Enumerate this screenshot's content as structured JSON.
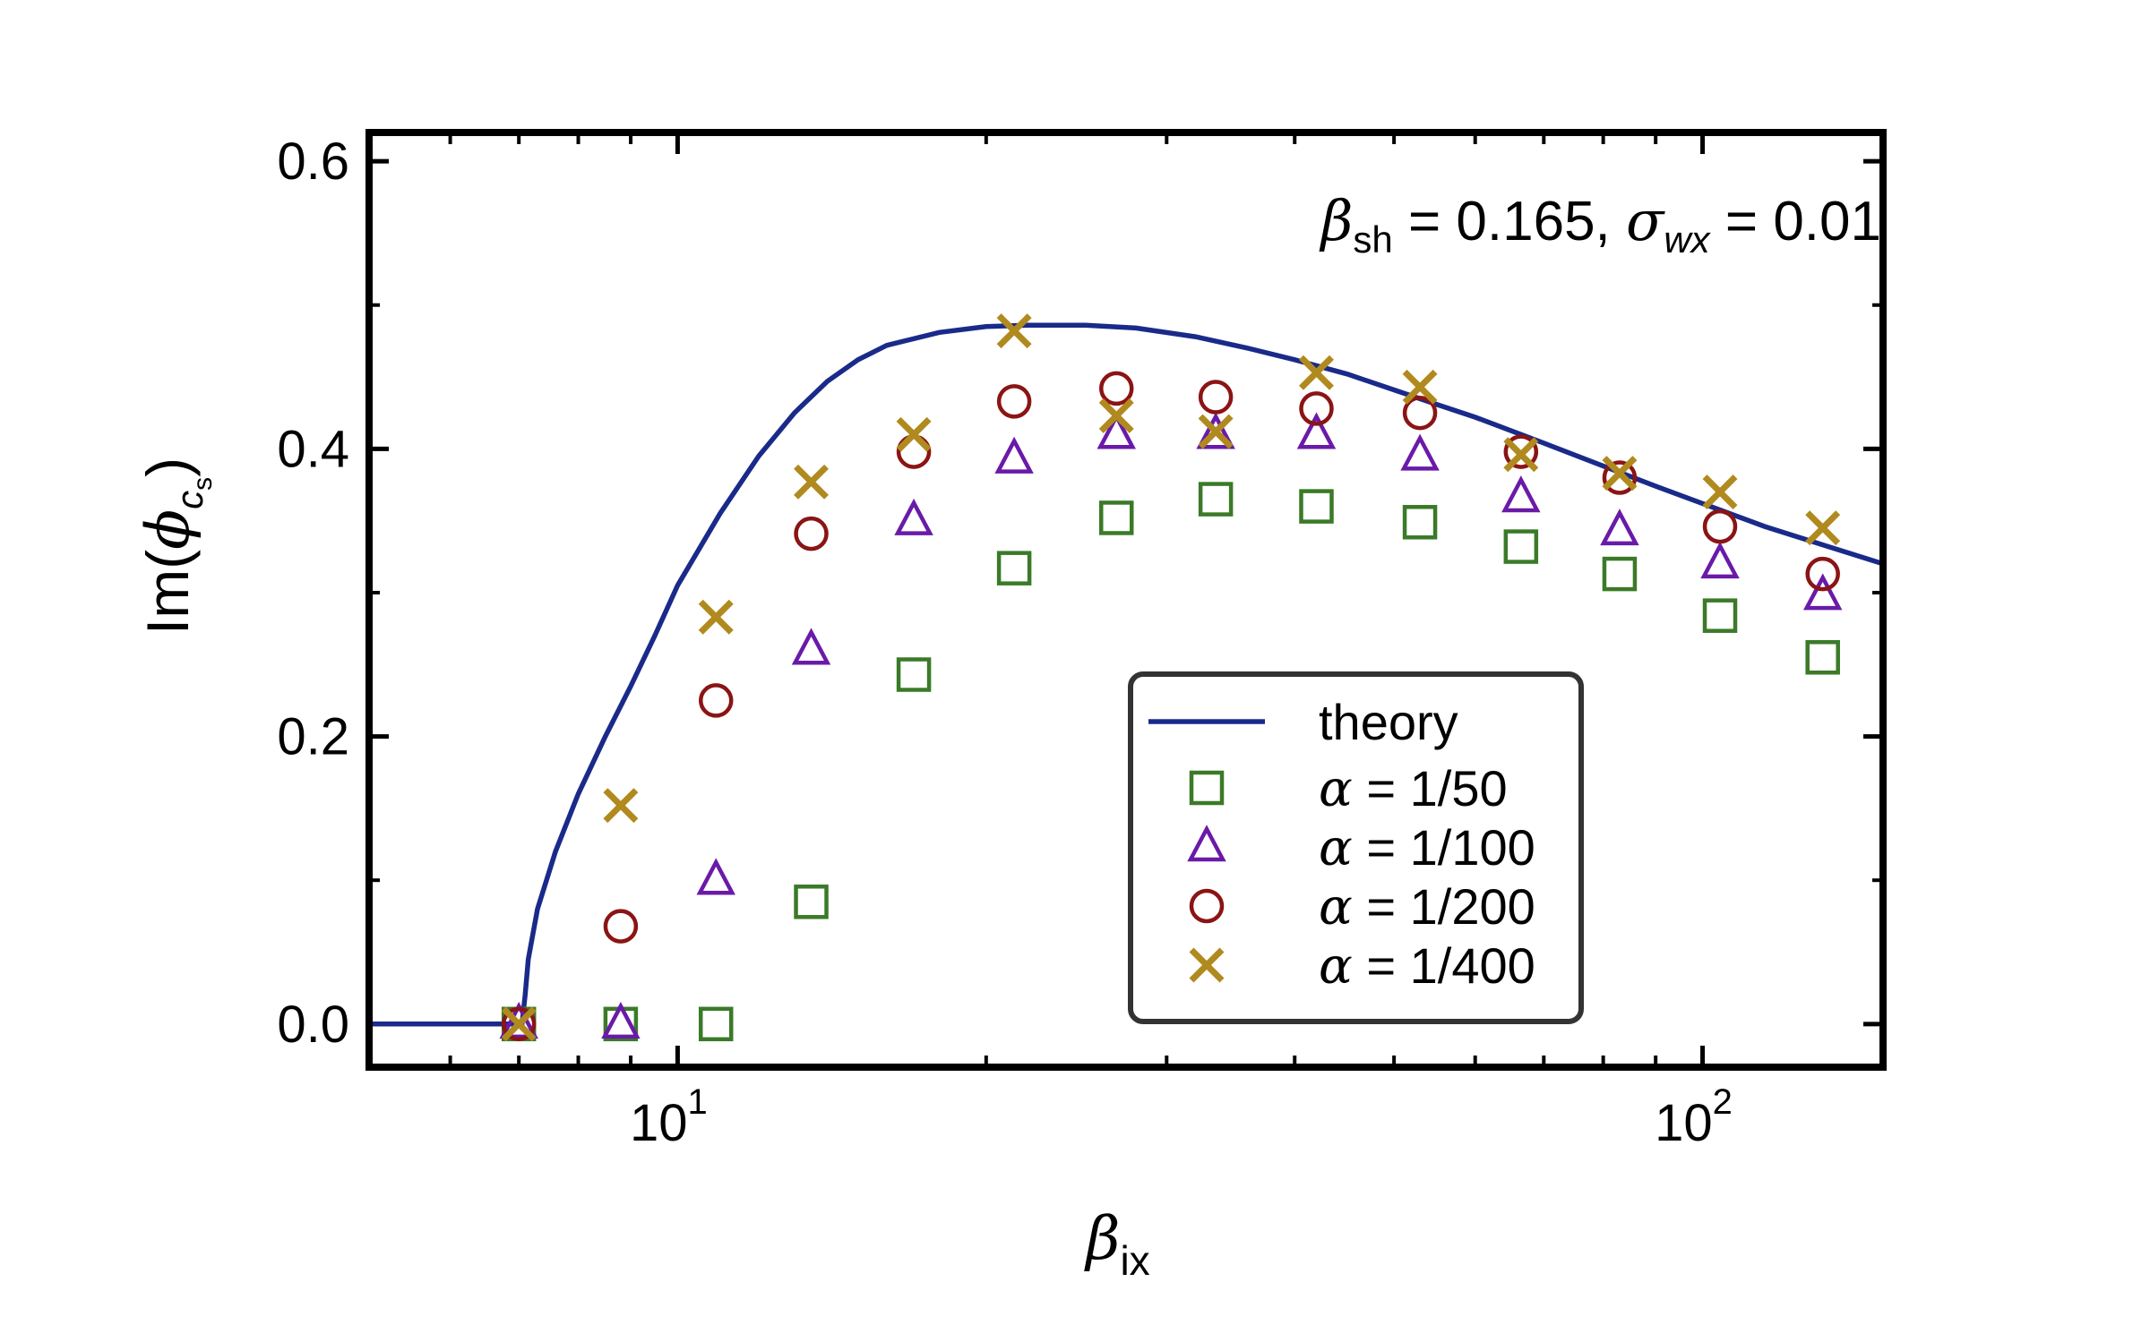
{
  "chart_data": {
    "type": "scatter",
    "x_scale": "log",
    "xlim": [
      5.0,
      150.0
    ],
    "ylim": [
      -0.03,
      0.62
    ],
    "xlabel": {
      "main": "β",
      "sub": "ix"
    },
    "ylabel": {
      "pre": "Im(",
      "sym": "ϕ",
      "sub": "c",
      "subsub": "s",
      "post": ")"
    },
    "y_ticks": [
      0.0,
      0.2,
      0.4,
      0.6
    ],
    "y_tick_labels": [
      "0.0",
      "0.2",
      "0.4",
      "0.6"
    ],
    "x_major_ticks": [
      10,
      100
    ],
    "x_tick_labels": [
      {
        "base": "10",
        "exp": "1"
      },
      {
        "base": "10",
        "exp": "2"
      }
    ],
    "annotation": {
      "beta": "β",
      "beta_sub": "sh",
      "beta_val": " = 0.165, ",
      "sigma": "σ",
      "sigma_sub": "wx",
      "sigma_val": " = 0.01"
    },
    "legend_position": "lower-right",
    "theory": {
      "name": "theory",
      "color": "#1a2a8a",
      "x": [
        5.0,
        6.5,
        7.05,
        7.1,
        7.15,
        7.3,
        7.6,
        8.0,
        8.5,
        9.0,
        9.5,
        10.0,
        11.0,
        12.0,
        13.0,
        14.0,
        15.0,
        16.0,
        18.0,
        20.0,
        22.0,
        25.0,
        28.0,
        32.0,
        36.0,
        40.0,
        45.0,
        50.0,
        55.0,
        60.0,
        70.0,
        80.0,
        90.0,
        100.0,
        115.0,
        130.0,
        150.0
      ],
      "y": [
        0.0,
        0.0,
        0.0,
        0.02,
        0.045,
        0.08,
        0.12,
        0.16,
        0.2,
        0.235,
        0.27,
        0.305,
        0.355,
        0.395,
        0.425,
        0.447,
        0.462,
        0.472,
        0.481,
        0.485,
        0.486,
        0.486,
        0.484,
        0.478,
        0.47,
        0.462,
        0.452,
        0.441,
        0.431,
        0.422,
        0.404,
        0.388,
        0.374,
        0.362,
        0.346,
        0.334,
        0.32
      ]
    },
    "series": [
      {
        "name": "α = 1/50",
        "label_sym": "α",
        "label_val": " = 1/50",
        "marker": "square",
        "color": "#3a7a28",
        "x": [
          7.0,
          8.8,
          10.9,
          13.5,
          17.0,
          21.3,
          26.8,
          33.5,
          42.0,
          53.0,
          66.5,
          83.0,
          104.0,
          131.0
        ],
        "y": [
          0.0,
          0.0,
          0.0,
          0.085,
          0.243,
          0.317,
          0.352,
          0.365,
          0.36,
          0.349,
          0.332,
          0.313,
          0.284,
          0.255
        ]
      },
      {
        "name": "α = 1/100",
        "label_sym": "α",
        "label_val": " = 1/100",
        "marker": "triangle",
        "color": "#6a1aa8",
        "x": [
          7.0,
          8.8,
          10.9,
          13.5,
          17.0,
          21.3,
          26.8,
          33.5,
          42.0,
          53.0,
          66.5,
          83.0,
          104.0,
          131.0
        ],
        "y": [
          0.0,
          0.0,
          0.1,
          0.26,
          0.35,
          0.393,
          0.41,
          0.41,
          0.41,
          0.395,
          0.366,
          0.343,
          0.32,
          0.298
        ]
      },
      {
        "name": "α = 1/200",
        "label_sym": "α",
        "label_val": " = 1/200",
        "marker": "circle",
        "color": "#8b1414",
        "x": [
          7.0,
          8.8,
          10.9,
          13.5,
          17.0,
          21.3,
          26.8,
          33.5,
          42.0,
          53.0,
          66.5,
          83.0,
          104.0,
          131.0
        ],
        "y": [
          0.0,
          0.068,
          0.225,
          0.341,
          0.398,
          0.433,
          0.442,
          0.436,
          0.428,
          0.425,
          0.398,
          0.38,
          0.346,
          0.313
        ]
      },
      {
        "name": "α = 1/400",
        "label_sym": "α",
        "label_val": " = 1/400",
        "marker": "x",
        "color": "#b08a1e",
        "x": [
          7.0,
          8.8,
          10.9,
          13.5,
          17.0,
          21.3,
          26.8,
          33.5,
          42.0,
          53.0,
          66.5,
          83.0,
          104.0,
          131.0
        ],
        "y": [
          0.0,
          0.152,
          0.283,
          0.377,
          0.41,
          0.482,
          0.423,
          0.412,
          0.453,
          0.443,
          0.396,
          0.383,
          0.37,
          0.345
        ]
      }
    ]
  }
}
